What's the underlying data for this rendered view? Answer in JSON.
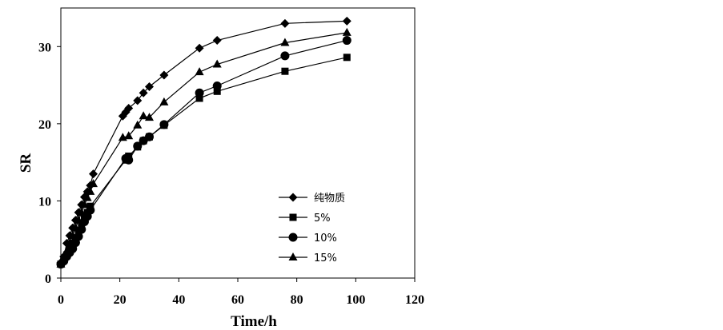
{
  "chart_data": {
    "type": "line",
    "title": "",
    "xlabel": "Time/h",
    "ylabel": "SR",
    "xlim": [
      0,
      120
    ],
    "ylim": [
      0,
      35
    ],
    "xticks": [
      "0",
      "20",
      "40",
      "60",
      "80",
      "100",
      "120"
    ],
    "yticks": [
      "0",
      "10",
      "20",
      "30"
    ],
    "grid": false,
    "legend_position": "bottom-right",
    "series": [
      {
        "name": "纯物质",
        "marker": "diamond",
        "x": [
          0,
          1,
          2,
          3,
          4,
          5,
          6,
          7,
          8,
          9,
          10,
          11,
          21,
          22,
          23,
          26,
          28,
          30,
          35,
          47,
          53,
          76,
          97
        ],
        "y": [
          2.0,
          2.8,
          4.5,
          5.5,
          6.5,
          7.5,
          8.5,
          9.5,
          10.5,
          11.2,
          12.0,
          13.5,
          21.0,
          21.5,
          22.0,
          23.0,
          24.0,
          24.8,
          26.3,
          29.8,
          30.8,
          33.0,
          33.3
        ]
      },
      {
        "name": "5%",
        "marker": "square",
        "x": [
          0,
          1,
          2,
          3,
          4,
          5,
          6,
          7,
          8,
          9,
          10,
          22,
          23,
          26,
          28,
          30,
          35,
          47,
          53,
          76,
          97
        ],
        "y": [
          1.8,
          2.3,
          3.0,
          3.7,
          4.5,
          5.2,
          6.0,
          7.0,
          7.8,
          8.5,
          9.3,
          15.3,
          15.8,
          17.0,
          17.8,
          18.3,
          19.8,
          23.3,
          24.2,
          26.8,
          28.6
        ]
      },
      {
        "name": "10%",
        "marker": "circle",
        "x": [
          0,
          1,
          2,
          3,
          4,
          5,
          6,
          7,
          8,
          9,
          10,
          22,
          23,
          26,
          28,
          30,
          35,
          47,
          53,
          76,
          97
        ],
        "y": [
          1.8,
          2.2,
          2.8,
          3.3,
          3.8,
          4.6,
          5.4,
          6.3,
          7.3,
          8.0,
          8.8,
          15.5,
          15.3,
          17.1,
          17.8,
          18.3,
          19.9,
          24.0,
          24.9,
          28.8,
          30.8
        ]
      },
      {
        "name": "15%",
        "marker": "triangle",
        "x": [
          0,
          1,
          2,
          3,
          4,
          5,
          6,
          7,
          8,
          9,
          10,
          11,
          21,
          23,
          26,
          28,
          30,
          35,
          47,
          53,
          76,
          97
        ],
        "y": [
          1.8,
          2.5,
          3.5,
          4.5,
          5.5,
          6.5,
          7.5,
          8.5,
          9.5,
          10.4,
          11.2,
          12.2,
          18.2,
          18.4,
          19.8,
          21.0,
          20.8,
          22.8,
          26.7,
          27.7,
          30.5,
          31.8
        ]
      }
    ]
  }
}
